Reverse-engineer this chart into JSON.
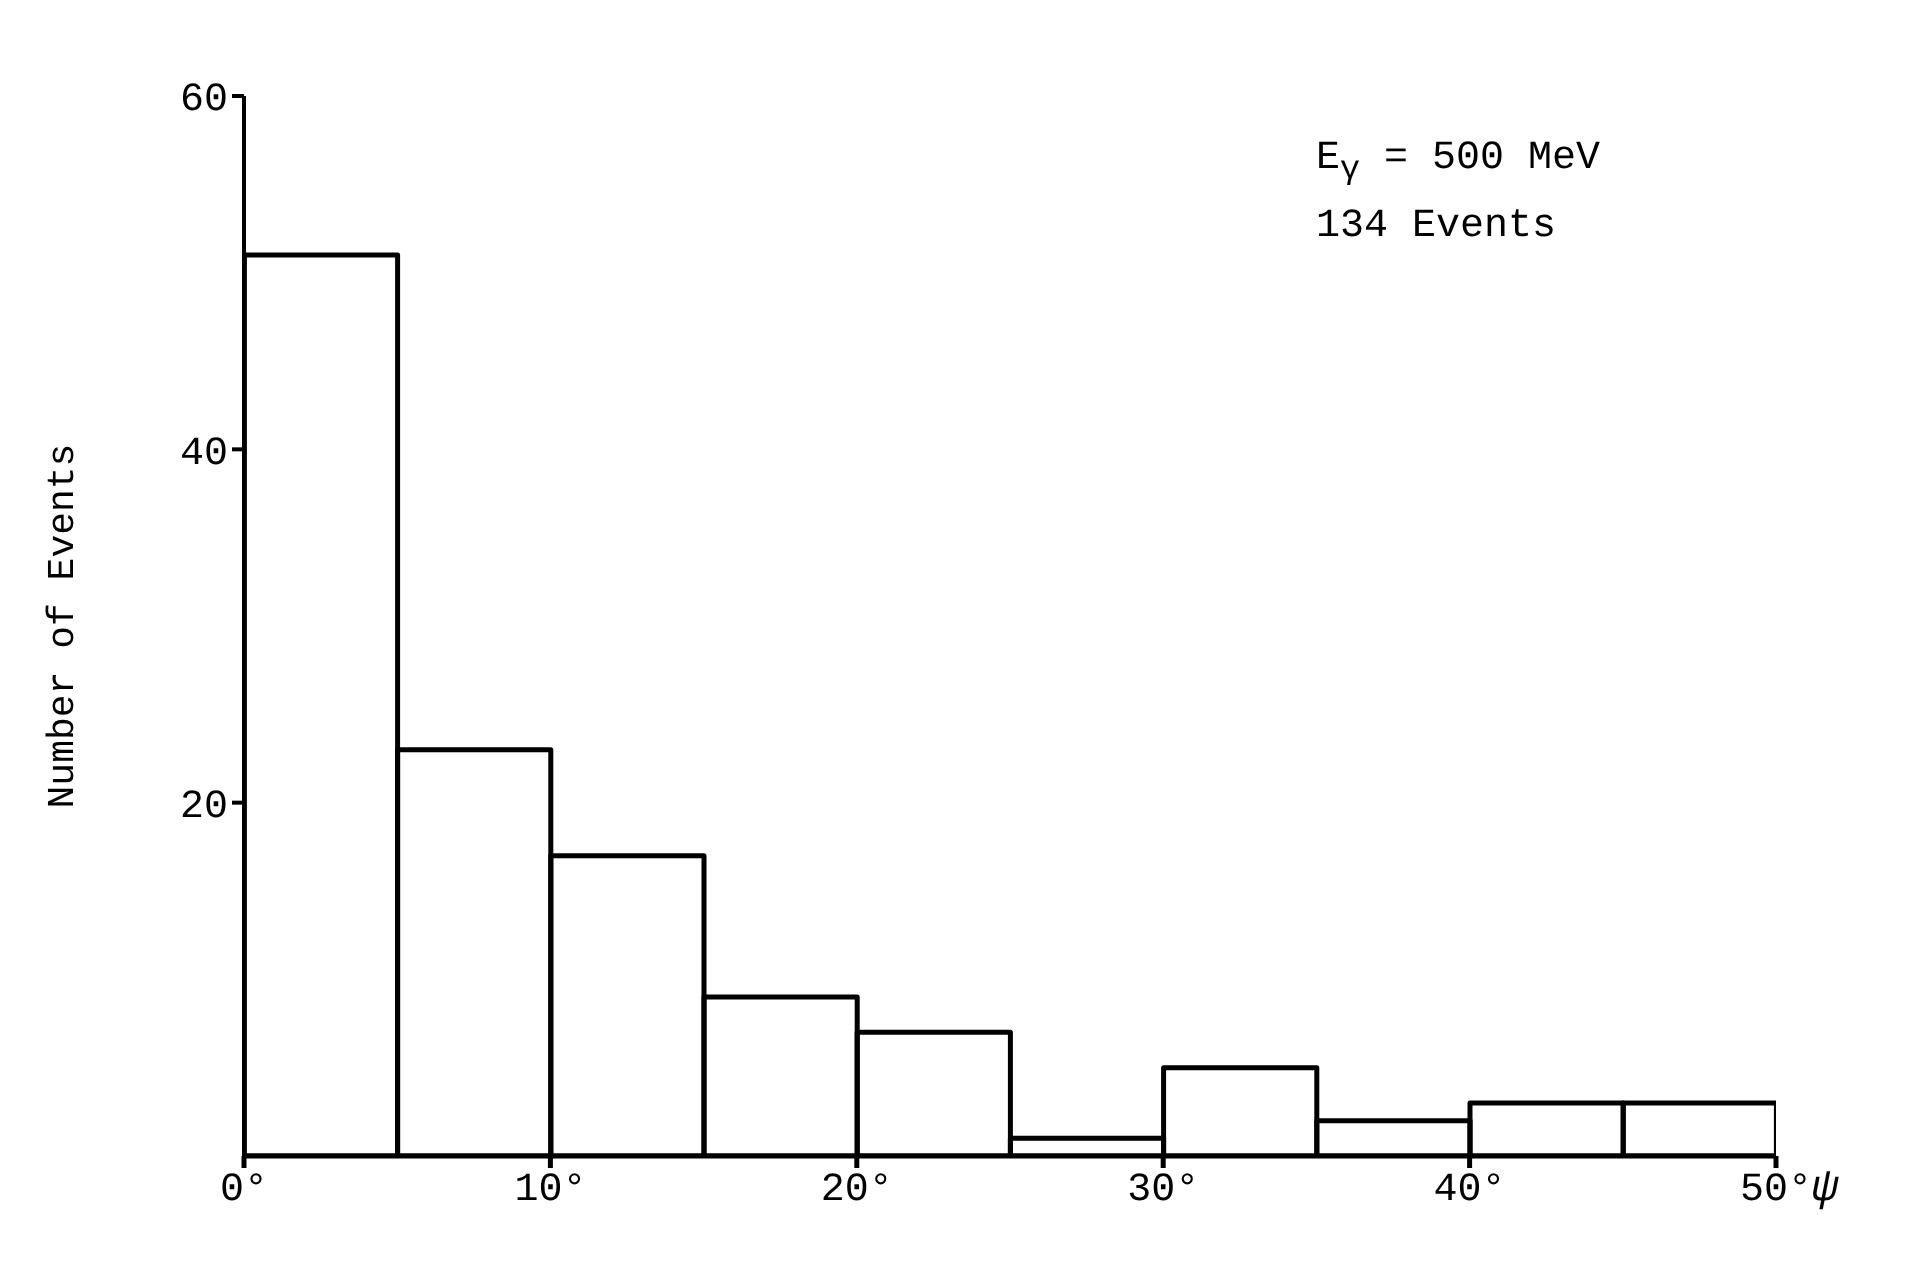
{
  "chart_data": {
    "type": "histogram",
    "xlabel": "ψ",
    "ylabel": "Number of Events",
    "bins": [
      0,
      5,
      10,
      15,
      20,
      25,
      30,
      35,
      40,
      45,
      50
    ],
    "values": [
      51,
      23,
      17,
      9,
      7,
      1,
      5,
      2,
      3,
      3
    ],
    "color": "#000000",
    "xlim": [
      0,
      50
    ],
    "ylim": [
      0,
      60
    ],
    "xticks": [
      {
        "value": 0,
        "label": "0°"
      },
      {
        "value": 10,
        "label": "10°"
      },
      {
        "value": 20,
        "label": "20°"
      },
      {
        "value": 30,
        "label": "30°"
      },
      {
        "value": 40,
        "label": "40°"
      },
      {
        "value": 50,
        "label": "50°"
      }
    ],
    "yticks": [
      20,
      40,
      60
    ],
    "annotations": [
      "E$_{γ}$ = 500 MeV",
      "134 Events"
    ],
    "grid": false,
    "legend": false
  }
}
